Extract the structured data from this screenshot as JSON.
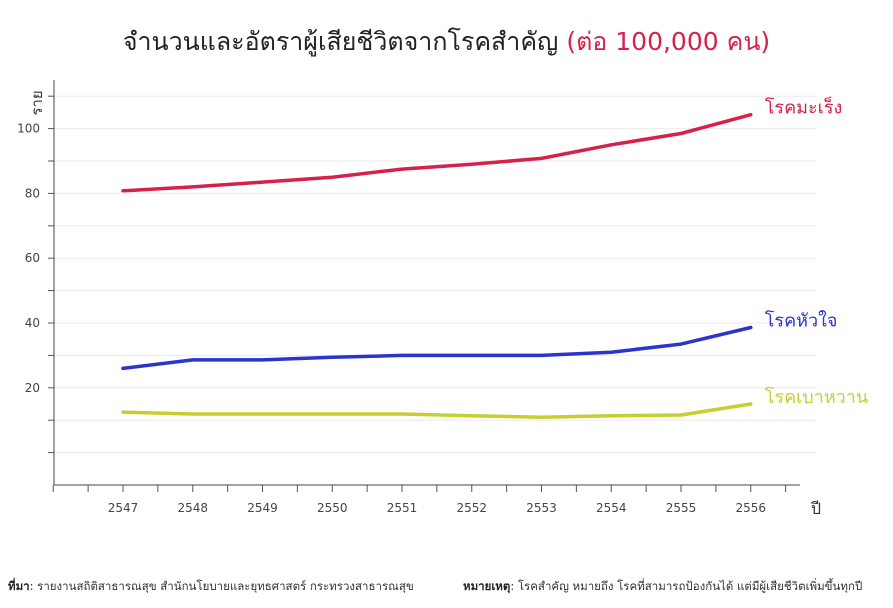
{
  "chart_data": {
    "type": "line",
    "title": "จำนวนและอัตราผู้เสียชีวิตจากโรคสำคัญ",
    "subtitle": "(ต่อ 100,000 คน)",
    "xlabel": "ปี",
    "ylabel": "ราย",
    "x": [
      "2547",
      "2548",
      "2549",
      "2550",
      "2551",
      "2552",
      "2553",
      "2554",
      "2555",
      "2556"
    ],
    "ylim": [
      -10,
      115
    ],
    "yticks": [
      20,
      40,
      60,
      80,
      100
    ],
    "grid": true,
    "legend": "inline-right",
    "series": [
      {
        "name": "โรคมะเร็ง",
        "color": "#d6214d",
        "values": [
          80.8,
          82.0,
          83.5,
          85.0,
          87.5,
          89.0,
          90.8,
          95.0,
          98.5,
          104.3
        ]
      },
      {
        "name": "โรคหัวใจ",
        "color": "#2c34cc",
        "values": [
          26.0,
          28.6,
          28.6,
          29.4,
          30.0,
          30.0,
          30.0,
          31.0,
          33.5,
          38.6
        ]
      },
      {
        "name": "โรคเบาหวาน",
        "color": "#c6cf2e",
        "values": [
          12.5,
          11.9,
          11.9,
          11.9,
          11.9,
          11.4,
          10.9,
          11.4,
          11.6,
          15.0
        ]
      }
    ]
  },
  "footer": {
    "source_label": "ที่มา",
    "source_text": ": รายงานสถิติสาธารณสุข สำนักนโยบายและยุทธศาสตร์ กระทรวงสาธารณสุข",
    "note_label": "หมายเหตุ",
    "note_text": ": โรคสำคัญ หมายถึง โรคที่สามารถป้องกันได้ แต่มีผู้เสียชีวิตเพิ่มขึ้นทุกปี"
  }
}
